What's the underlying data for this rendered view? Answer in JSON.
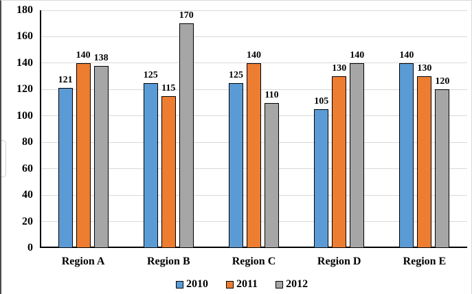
{
  "chart_data": {
    "type": "bar",
    "title": "",
    "xlabel": "",
    "ylabel": "",
    "categories": [
      "Region A",
      "Region B",
      "Region C",
      "Region D",
      "Region E"
    ],
    "series": [
      {
        "name": "2010",
        "color": "#5B9BD5",
        "values": [
          121,
          125,
          125,
          105,
          140
        ]
      },
      {
        "name": "2011",
        "color": "#ED7D31",
        "values": [
          140,
          115,
          140,
          130,
          130
        ]
      },
      {
        "name": "2012",
        "color": "#A6A6A6",
        "values": [
          138,
          170,
          110,
          140,
          120
        ]
      }
    ],
    "ylim": [
      0,
      180
    ],
    "ytick_step": 20,
    "yticks": [
      0,
      20,
      40,
      60,
      80,
      100,
      120,
      140,
      160,
      180
    ],
    "grid": true,
    "data_labels": true,
    "legend_position": "bottom",
    "colors": {
      "gridline": "#D9D9D9",
      "axis": "#000000",
      "bar_border": "#000000",
      "text": "#000000",
      "background": "#FFFFFF"
    }
  }
}
